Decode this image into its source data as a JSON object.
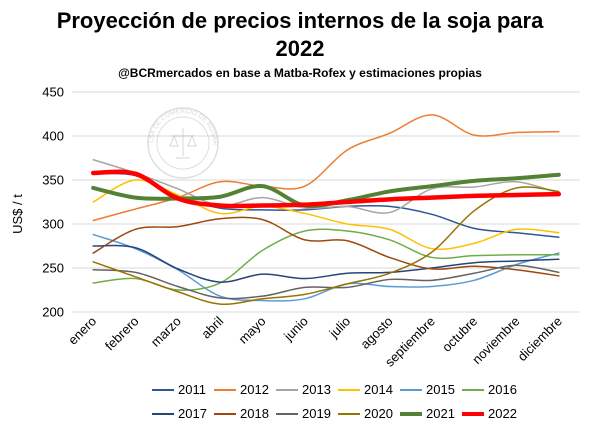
{
  "chart_data": {
    "type": "line",
    "title_line1": "Proyección de precios internos de la soja para",
    "title_line2": "2022",
    "subtitle": "@BCRmercados en base a Matba-Rofex y estimaciones propias",
    "ylabel": "US$ / t",
    "xlabel": "",
    "ylim": [
      200,
      450
    ],
    "yticks": [
      200,
      250,
      300,
      350,
      400,
      450
    ],
    "grid": true,
    "legend_position": "bottom",
    "watermark_text": "BOLSA DE COMERCIO DE ROSARIO",
    "categories": [
      "enero",
      "febrero",
      "marzo",
      "abril",
      "mayo",
      "junio",
      "julio",
      "agosto",
      "septiembre",
      "octubre",
      "noviembre",
      "diciembre"
    ],
    "series": [
      {
        "name": "2011",
        "color": "#2f5597",
        "width": 1.5,
        "values": [
          357,
          355,
          332,
          318,
          316,
          316,
          320,
          320,
          311,
          295,
          290,
          285
        ]
      },
      {
        "name": "2012",
        "color": "#ed7d31",
        "width": 1.5,
        "values": [
          304,
          317,
          330,
          348,
          343,
          343,
          384,
          403,
          424,
          401,
          404,
          405
        ]
      },
      {
        "name": "2013",
        "color": "#a5a5a5",
        "width": 1.5,
        "values": [
          373,
          358,
          340,
          321,
          330,
          318,
          320,
          313,
          340,
          342,
          348,
          335
        ]
      },
      {
        "name": "2014",
        "color": "#ffc000",
        "width": 1.5,
        "values": [
          325,
          350,
          333,
          312,
          320,
          312,
          300,
          294,
          272,
          278,
          294,
          290
        ]
      },
      {
        "name": "2015",
        "color": "#5b9bd5",
        "width": 1.5,
        "values": [
          288,
          272,
          248,
          218,
          213,
          215,
          232,
          229,
          229,
          236,
          254,
          267
        ]
      },
      {
        "name": "2016",
        "color": "#70ad47",
        "width": 1.5,
        "values": [
          233,
          238,
          225,
          233,
          270,
          292,
          292,
          282,
          262,
          264,
          265,
          265
        ]
      },
      {
        "name": "2017",
        "color": "#264478",
        "width": 1.5,
        "values": [
          275,
          273,
          249,
          234,
          243,
          238,
          244,
          245,
          250,
          256,
          258,
          260
        ]
      },
      {
        "name": "2018",
        "color": "#9e480e",
        "width": 1.5,
        "values": [
          267,
          294,
          297,
          306,
          305,
          282,
          281,
          262,
          249,
          252,
          248,
          241
        ]
      },
      {
        "name": "2019",
        "color": "#636363",
        "width": 1.5,
        "values": [
          248,
          245,
          229,
          216,
          218,
          228,
          228,
          237,
          236,
          244,
          253,
          245
        ]
      },
      {
        "name": "2020",
        "color": "#997300",
        "width": 1.5,
        "values": [
          257,
          240,
          223,
          209,
          215,
          220,
          232,
          244,
          268,
          315,
          341,
          337
        ]
      },
      {
        "name": "2021",
        "color": "#548235",
        "width": 4,
        "values": [
          341,
          330,
          329,
          331,
          343,
          321,
          327,
          337,
          343,
          349,
          352,
          356
        ]
      },
      {
        "name": "2022",
        "color": "#ff0000",
        "width": 4.5,
        "values": [
          358,
          357,
          329,
          321,
          321,
          322,
          325,
          328,
          330,
          332,
          333,
          334
        ]
      }
    ]
  }
}
